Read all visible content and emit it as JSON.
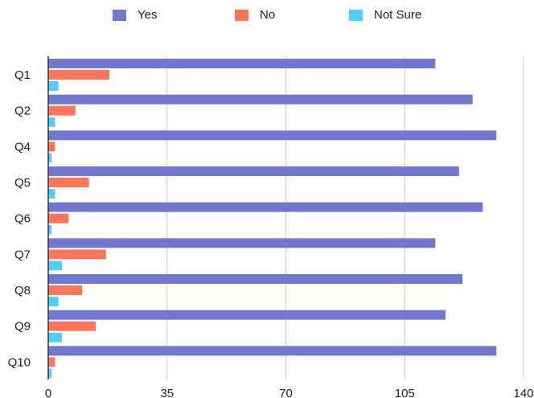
{
  "colors": {
    "yes": "#7079cf",
    "no": "#ff7558",
    "not_sure": "#4fcfff",
    "grid": "#c8c8c8",
    "axis": "#333333"
  },
  "chart_data": {
    "type": "bar",
    "orientation": "horizontal",
    "categories": [
      "Q1",
      "Q2",
      "Q4",
      "Q5",
      "Q6",
      "Q7",
      "Q8",
      "Q9",
      "Q10"
    ],
    "series": [
      {
        "name": "Yes",
        "values": [
          114,
          125,
          132,
          121,
          128,
          114,
          122,
          117,
          132
        ]
      },
      {
        "name": "No",
        "values": [
          18,
          8,
          2,
          12,
          6,
          17,
          10,
          14,
          2
        ]
      },
      {
        "name": "Not Sure",
        "values": [
          3,
          2,
          1,
          2,
          1,
          4,
          3,
          4,
          1
        ]
      }
    ],
    "xticks": [
      "0",
      "35",
      "70",
      "105",
      "140"
    ],
    "xlim": [
      0,
      140
    ],
    "legend_position": "top",
    "grid": true
  }
}
